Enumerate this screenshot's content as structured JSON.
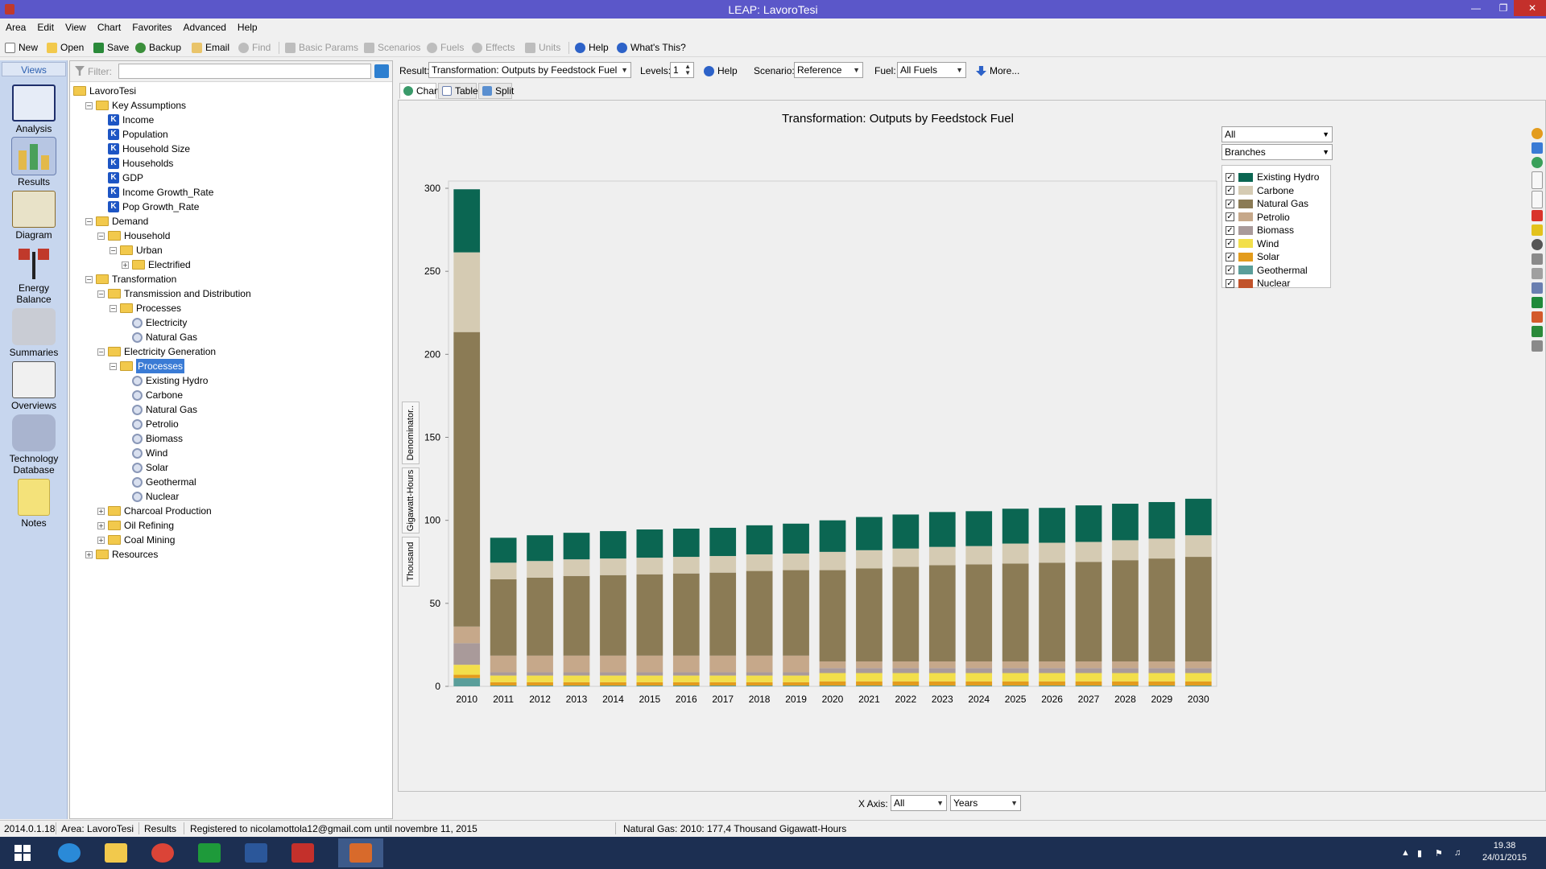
{
  "window": {
    "title": "LEAP: LavoroTesi"
  },
  "menu": [
    "Area",
    "Edit",
    "View",
    "Chart",
    "Favorites",
    "Advanced",
    "Help"
  ],
  "toolbar": {
    "new": "New",
    "open": "Open",
    "save": "Save",
    "backup": "Backup",
    "email": "Email",
    "find": "Find",
    "basic_params": "Basic Params",
    "scenarios": "Scenarios",
    "fuels": "Fuels",
    "effects": "Effects",
    "units": "Units",
    "help": "Help",
    "whats_this": "What's This?"
  },
  "views": {
    "header": "Views",
    "items": [
      "Analysis",
      "Results",
      "Diagram",
      "Energy Balance",
      "Summaries",
      "Overviews",
      "Technology Database",
      "Notes"
    ],
    "selected": "Results"
  },
  "tree": {
    "filter_label": "Filter:",
    "filter_value": "",
    "nodes": [
      {
        "label": "LavoroTesi"
      },
      {
        "label": "Key Assumptions"
      },
      {
        "label": "Income"
      },
      {
        "label": "Population"
      },
      {
        "label": "Household Size"
      },
      {
        "label": "Households"
      },
      {
        "label": "GDP"
      },
      {
        "label": "Income Growth_Rate"
      },
      {
        "label": "Pop Growth_Rate"
      },
      {
        "label": "Demand"
      },
      {
        "label": "Household"
      },
      {
        "label": "Urban"
      },
      {
        "label": "Electrified"
      },
      {
        "label": "Transformation"
      },
      {
        "label": "Transmission and Distribution"
      },
      {
        "label": "Processes"
      },
      {
        "label": "Electricity"
      },
      {
        "label": "Natural Gas"
      },
      {
        "label": "Electricity Generation"
      },
      {
        "label": "Processes"
      },
      {
        "label": "Existing Hydro"
      },
      {
        "label": "Carbone"
      },
      {
        "label": "Natural Gas"
      },
      {
        "label": "Petrolio"
      },
      {
        "label": "Biomass"
      },
      {
        "label": "Wind"
      },
      {
        "label": "Solar"
      },
      {
        "label": "Geothermal"
      },
      {
        "label": "Nuclear"
      },
      {
        "label": "Charcoal Production"
      },
      {
        "label": "Oil Refining"
      },
      {
        "label": "Coal Mining"
      },
      {
        "label": "Resources"
      }
    ]
  },
  "resultbar": {
    "result_label": "Result:",
    "result_value": "Transformation: Outputs by Feedstock Fuel",
    "levels_label": "Levels:",
    "levels_value": "1",
    "help": "Help",
    "scenario_label": "Scenario:",
    "scenario_value": "Reference",
    "fuel_label": "Fuel:",
    "fuel_value": "All Fuels",
    "more": "More..."
  },
  "tabs": [
    "Chart",
    "Table",
    "Split"
  ],
  "side_controls": {
    "filter_value": "All",
    "group_value": "Branches"
  },
  "vertical_tabs": [
    "Denominator..",
    "Gigawatt-Hours",
    "Thousand"
  ],
  "xaxis": {
    "label": "X Axis:",
    "value1": "All",
    "value2": "Years"
  },
  "status": {
    "version": "2014.0.1.18",
    "area": "Area: LavoroTesi",
    "view": "Results",
    "registration": "Registered to nicolamottola12@gmail.com until novembre 11, 2015",
    "hover": "Natural Gas: 2010: 177,4 Thousand Gigawatt-Hours"
  },
  "clock": {
    "time": "19.38",
    "date": "24/01/2015"
  },
  "chart_data": {
    "type": "bar",
    "stacked": true,
    "title": "Transformation: Outputs by Feedstock Fuel",
    "ylim": [
      0,
      300
    ],
    "yticks": [
      0,
      50,
      100,
      150,
      200,
      250,
      300
    ],
    "grid": false,
    "legend_position": "right",
    "categories": [
      "2010",
      "2011",
      "2012",
      "2013",
      "2014",
      "2015",
      "2016",
      "2017",
      "2018",
      "2019",
      "2020",
      "2021",
      "2022",
      "2023",
      "2024",
      "2025",
      "2026",
      "2027",
      "2028",
      "2029",
      "2030"
    ],
    "series": [
      {
        "name": "Nuclear",
        "color": "#c1532b",
        "values": [
          0,
          0,
          0,
          0,
          0,
          0,
          0,
          0,
          0,
          0,
          0,
          0,
          0,
          0,
          0,
          0,
          0,
          0,
          0,
          0,
          0
        ]
      },
      {
        "name": "Geothermal",
        "color": "#5a9e9a",
        "values": [
          5,
          0.5,
          0.5,
          0.5,
          0.5,
          0.5,
          0.5,
          0.5,
          0.5,
          0.5,
          0.5,
          0.5,
          0.5,
          0.5,
          0.5,
          0.5,
          0.5,
          0.5,
          0.5,
          0.5,
          0.5
        ]
      },
      {
        "name": "Solar",
        "color": "#e39c1d",
        "values": [
          2,
          2,
          2,
          2,
          2,
          2,
          2,
          2,
          2,
          2,
          2.5,
          2.5,
          2.5,
          2.5,
          2.5,
          2.5,
          2.5,
          2.5,
          2.5,
          2.5,
          2.5
        ]
      },
      {
        "name": "Wind",
        "color": "#f2df4b",
        "values": [
          6,
          4,
          4,
          4,
          4,
          4,
          4,
          4,
          4,
          4,
          5,
          5,
          5,
          5,
          5,
          5,
          5,
          5,
          5,
          5,
          5
        ]
      },
      {
        "name": "Biomass",
        "color": "#a99a9a",
        "values": [
          13,
          2,
          2,
          2,
          2,
          2,
          2,
          2,
          2,
          2,
          3,
          3,
          3,
          3,
          3,
          3,
          3,
          3,
          3,
          3,
          3
        ]
      },
      {
        "name": "Petrolio",
        "color": "#c6a88a",
        "values": [
          10,
          10,
          10,
          10,
          10,
          10,
          10,
          10,
          10,
          10,
          4,
          4,
          4,
          4,
          4,
          4,
          4,
          4,
          4,
          4,
          4
        ]
      },
      {
        "name": "Natural Gas",
        "color": "#8b7b55",
        "values": [
          177.4,
          46,
          47,
          48,
          48.5,
          49,
          49.5,
          50,
          51,
          51.5,
          55,
          56,
          57,
          58,
          58.5,
          59,
          59.5,
          60,
          61,
          62,
          63
        ]
      },
      {
        "name": "Carbone",
        "color": "#d5cbb3",
        "values": [
          48,
          10,
          10,
          10,
          10,
          10,
          10,
          10,
          10,
          10,
          11,
          11,
          11,
          11,
          11,
          12,
          12,
          12,
          12,
          12,
          13
        ]
      },
      {
        "name": "Existing Hydro",
        "color": "#0b6652",
        "values": [
          38,
          15,
          15.5,
          16,
          16.5,
          17,
          17,
          17,
          17.5,
          18,
          19,
          20,
          20.5,
          21,
          21,
          21,
          21,
          22,
          22,
          22,
          22
        ]
      }
    ]
  }
}
